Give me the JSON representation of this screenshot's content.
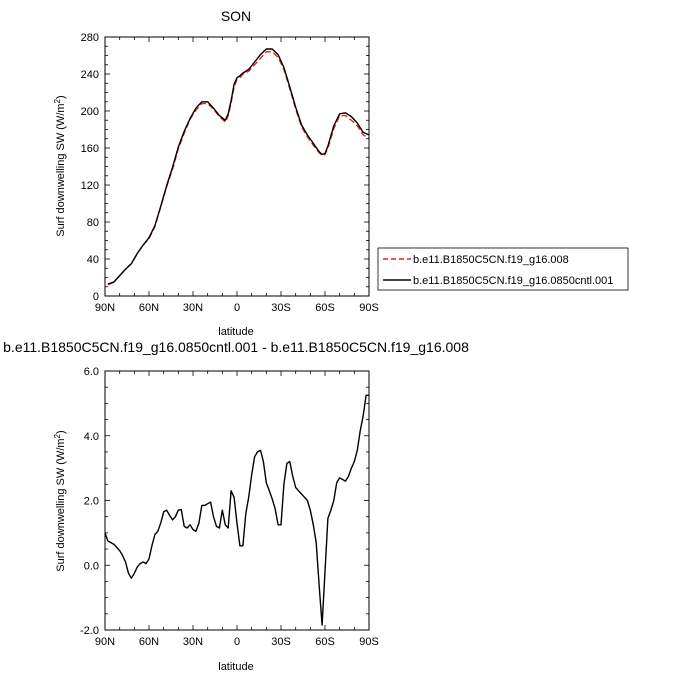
{
  "chart_data": [
    {
      "type": "line",
      "title": "SON",
      "xlabel": "latitude",
      "ylabel": "Surf downwelling SW (W/m",
      "ylabel_sup": "2",
      "ylabel_end": ")",
      "xlim": [
        90,
        -90
      ],
      "ylim": [
        0,
        280
      ],
      "xticks": [
        90,
        60,
        30,
        0,
        -30,
        -60,
        -90
      ],
      "xtick_labels": [
        "90N",
        "60N",
        "30N",
        "0",
        "30S",
        "60S",
        "90S"
      ],
      "yticks": [
        0,
        40,
        80,
        120,
        160,
        200,
        240,
        280
      ],
      "ytick_labels": [
        "0",
        "40",
        "80",
        "120",
        "160",
        "200",
        "240",
        "280"
      ],
      "legend_position": "right",
      "series": [
        {
          "name": "b.e11.B1850C5CN.f19_g16.008",
          "color": "#e8231f",
          "dash": true,
          "x": [
            88,
            84,
            80,
            76,
            72,
            68,
            64,
            60,
            56,
            52,
            48,
            44,
            40,
            36,
            32,
            28,
            24,
            20,
            16,
            12,
            8,
            6,
            4,
            2,
            0,
            -2,
            -4,
            -8,
            -12,
            -16,
            -20,
            -24,
            -28,
            -32,
            -36,
            -40,
            -44,
            -48,
            -52,
            -56,
            -58,
            -60,
            -62,
            -66,
            -70,
            -74,
            -78,
            -82,
            -86,
            -90
          ],
          "y": [
            12,
            15,
            22,
            29,
            35,
            46,
            55,
            62,
            75,
            96,
            118,
            137,
            159,
            176,
            191,
            201,
            208,
            208,
            202,
            194,
            188,
            195,
            209,
            226,
            234,
            236,
            240,
            243,
            250,
            257,
            264,
            264,
            258,
            245,
            224,
            202,
            183,
            172,
            163,
            155,
            152,
            153,
            160,
            181,
            195,
            195,
            190,
            184,
            174,
            171
          ]
        },
        {
          "name": "b.e11.B1850C5CN.f19_g16.0850cntl.001",
          "color": "#000000",
          "dash": false,
          "x": [
            88,
            84,
            80,
            76,
            72,
            68,
            64,
            60,
            56,
            52,
            48,
            44,
            40,
            36,
            32,
            28,
            24,
            20,
            16,
            12,
            8,
            6,
            4,
            2,
            0,
            -2,
            -4,
            -8,
            -12,
            -16,
            -20,
            -24,
            -28,
            -32,
            -36,
            -40,
            -44,
            -48,
            -52,
            -56,
            -58,
            -60,
            -62,
            -66,
            -70,
            -74,
            -78,
            -82,
            -86,
            -90
          ],
          "y": [
            13,
            15,
            22,
            29,
            35,
            46,
            55,
            63,
            76,
            97,
            119,
            139,
            161,
            178,
            192,
            203,
            210,
            210,
            203,
            195,
            190,
            197,
            211,
            229,
            236,
            238,
            241,
            245,
            253,
            261,
            267,
            267,
            261,
            247,
            226,
            204,
            185,
            174,
            165,
            156,
            153,
            154,
            162,
            184,
            197,
            198,
            194,
            187,
            177,
            174
          ]
        }
      ]
    },
    {
      "type": "line",
      "title": "b.e11.B1850C5CN.f19_g16.0850cntl.001 - b.e11.B1850C5CN.f19_g16.008",
      "xlabel": "latitude",
      "ylabel": "Surf downwelling SW (W/m",
      "ylabel_sup": "2",
      "ylabel_end": ")",
      "xlim": [
        90,
        -90
      ],
      "ylim": [
        -2.0,
        6.0
      ],
      "xticks": [
        90,
        60,
        30,
        0,
        -30,
        -60,
        -90
      ],
      "xtick_labels": [
        "90N",
        "60N",
        "30N",
        "0",
        "30S",
        "60S",
        "90S"
      ],
      "yticks": [
        -2.0,
        0.0,
        2.0,
        4.0,
        6.0
      ],
      "ytick_labels": [
        "-2.0",
        "0.0",
        "2.0",
        "4.0",
        "6.0"
      ],
      "series": [
        {
          "color": "#000000",
          "x": [
            90,
            88,
            86,
            84,
            82,
            80,
            78,
            76,
            74,
            72,
            70,
            68,
            66,
            64,
            62,
            60,
            58,
            56,
            54,
            52,
            50,
            48,
            46,
            44,
            42,
            40,
            38,
            36,
            34,
            32,
            30,
            28,
            26,
            24,
            22,
            20,
            18,
            16,
            14,
            12,
            10,
            8,
            6,
            4,
            2,
            0,
            -2,
            -4,
            -6,
            -8,
            -10,
            -12,
            -14,
            -16,
            -18,
            -20,
            -22,
            -24,
            -26,
            -28,
            -30,
            -32,
            -34,
            -36,
            -38,
            -40,
            -42,
            -44,
            -46,
            -48,
            -50,
            -52,
            -54,
            -56,
            -58,
            -60,
            -62,
            -64,
            -66,
            -68,
            -70,
            -72,
            -74,
            -76,
            -78,
            -80,
            -82,
            -84,
            -86,
            -88,
            -90
          ],
          "y": [
            1.0,
            0.75,
            0.7,
            0.65,
            0.55,
            0.45,
            0.3,
            0.1,
            -0.25,
            -0.4,
            -0.25,
            -0.05,
            0.05,
            0.1,
            0.05,
            0.2,
            0.6,
            0.95,
            1.05,
            1.3,
            1.65,
            1.7,
            1.55,
            1.4,
            1.5,
            1.7,
            1.72,
            1.2,
            1.15,
            1.25,
            1.1,
            1.05,
            1.3,
            1.85,
            1.85,
            1.9,
            1.95,
            1.5,
            1.2,
            1.15,
            1.7,
            1.25,
            1.15,
            2.3,
            2.1,
            1.3,
            0.6,
            0.6,
            1.6,
            2.1,
            2.8,
            3.35,
            3.5,
            3.55,
            3.2,
            2.55,
            2.3,
            2.05,
            1.75,
            1.25,
            1.25,
            2.5,
            3.15,
            3.2,
            2.75,
            2.4,
            2.3,
            2.2,
            2.1,
            2.0,
            1.7,
            1.25,
            0.7,
            -0.6,
            -1.85,
            -0.2,
            1.45,
            1.7,
            2.0,
            2.55,
            2.7,
            2.65,
            2.6,
            2.75,
            3.0,
            3.2,
            3.55,
            4.15,
            4.6,
            5.25,
            5.25
          ]
        }
      ]
    }
  ]
}
